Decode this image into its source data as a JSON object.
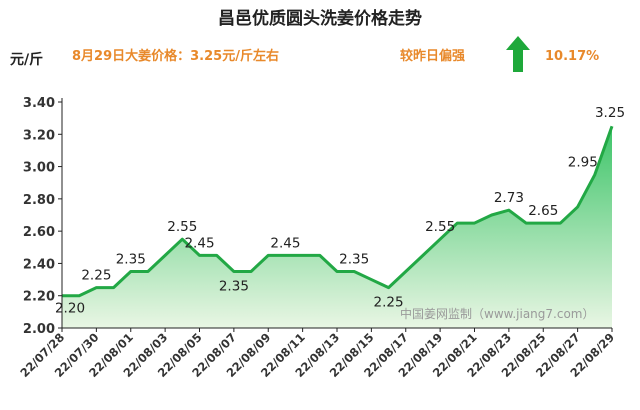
{
  "header": {
    "title": "昌邑优质圆头洗姜价格走势",
    "unit": "元/斤",
    "price_note": "8月29日大姜价格：3.25元/斤左右",
    "compare_label": "较昨日偏强",
    "change_pct": "10.17%",
    "arrow_icon": "up-arrow-icon"
  },
  "watermark": "中国姜网监制（www.jiang7.com）",
  "colors": {
    "line": "#22a845",
    "fill_top": "#3cc468",
    "fill_bottom": "#e9f6e4",
    "arrow": "#1ea83a",
    "accent_text": "#e8892b"
  },
  "chart_data": {
    "type": "area",
    "title": "昌邑优质圆头洗姜价格走势",
    "ylabel": "元/斤",
    "xlabel": "",
    "ylim": [
      2.0,
      3.4
    ],
    "yticks": [
      2.0,
      2.2,
      2.4,
      2.6,
      2.8,
      3.0,
      3.2,
      3.4
    ],
    "ytick_labels": [
      "2.00",
      "2.20",
      "2.40",
      "2.60",
      "2.80",
      "3.00",
      "3.20",
      "3.40"
    ],
    "categories": [
      "22/07/28",
      "22/07/29",
      "22/07/30",
      "22/07/31",
      "22/08/01",
      "22/08/02",
      "22/08/03",
      "22/08/04",
      "22/08/05",
      "22/08/06",
      "22/08/07",
      "22/08/08",
      "22/08/09",
      "22/08/10",
      "22/08/11",
      "22/08/12",
      "22/08/13",
      "22/08/14",
      "22/08/15",
      "22/08/16",
      "22/08/17",
      "22/08/18",
      "22/08/19",
      "22/08/20",
      "22/08/21",
      "22/08/22",
      "22/08/23",
      "22/08/24",
      "22/08/25",
      "22/08/26",
      "22/08/27",
      "22/08/28",
      "22/08/29"
    ],
    "tick_labels": [
      "22/07/28",
      "22/07/30",
      "22/08/01",
      "22/08/03",
      "22/08/05",
      "22/08/07",
      "22/08/09",
      "22/08/11",
      "22/08/13",
      "22/08/15",
      "22/08/17",
      "22/08/19",
      "22/08/21",
      "22/08/23",
      "22/08/25",
      "22/08/27",
      "22/08/29"
    ],
    "values": [
      2.2,
      2.2,
      2.25,
      2.25,
      2.35,
      2.35,
      2.45,
      2.55,
      2.45,
      2.45,
      2.35,
      2.35,
      2.45,
      2.45,
      2.45,
      2.45,
      2.35,
      2.35,
      2.3,
      2.25,
      2.35,
      2.45,
      2.55,
      2.65,
      2.65,
      2.7,
      2.73,
      2.65,
      2.65,
      2.65,
      2.75,
      2.95,
      3.25
    ],
    "data_labels": [
      {
        "index": 0,
        "text": "2.20"
      },
      {
        "index": 2,
        "text": "2.25"
      },
      {
        "index": 4,
        "text": "2.35"
      },
      {
        "index": 7,
        "text": "2.55"
      },
      {
        "index": 8,
        "text": "2.45"
      },
      {
        "index": 10,
        "text": "2.35"
      },
      {
        "index": 13,
        "text": "2.45"
      },
      {
        "index": 17,
        "text": "2.35"
      },
      {
        "index": 19,
        "text": "2.25"
      },
      {
        "index": 22,
        "text": "2.55"
      },
      {
        "index": 26,
        "text": "2.73"
      },
      {
        "index": 28,
        "text": "2.65"
      },
      {
        "index": 31,
        "text": "2.95"
      },
      {
        "index": 32,
        "text": "3.25"
      }
    ],
    "grid": false,
    "legend": "none"
  }
}
